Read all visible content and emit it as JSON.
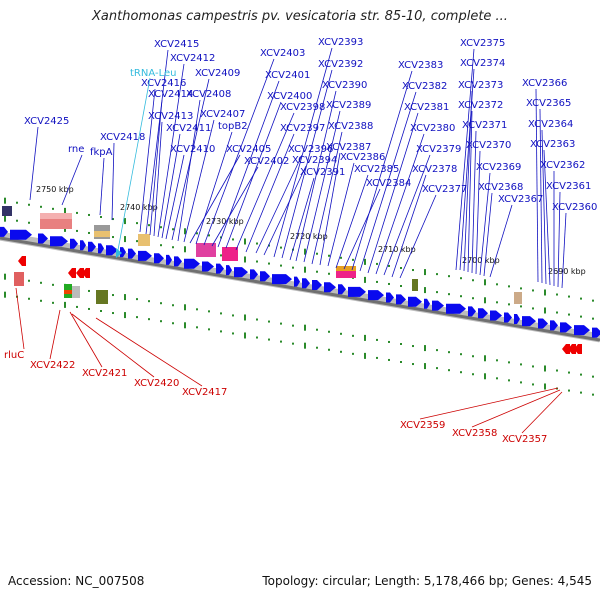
{
  "title": "Xanthomonas campestris pv. vesicatoria str. 85-10, complete ...",
  "footer": {
    "accession": "Accession: NC_007508",
    "summary": "Topology: circular; Length: 5,178,466 bp; Genes: 4,545"
  },
  "colors": {
    "forward_gene": "#0a0aee",
    "reverse_gene": "#ee0000",
    "trna": "#33bbdd",
    "label_blue": "#1010c0",
    "label_red": "#cc0000",
    "backbone": "#8a8a8a",
    "tick": "#2a8a2a"
  },
  "scale_labels": [
    "2750 kbp",
    "2740 kbp",
    "2730 kbp",
    "2720 kbp",
    "2710 kbp",
    "2700 kbp",
    "2690 kbp"
  ],
  "forward_labels": [
    "XCV2425",
    "rne",
    "fkpA",
    "XCV2418",
    "XCV2416",
    "XCV2415",
    "XCV2414",
    "XCV2413",
    "XCV2412",
    "XCV2411",
    "XCV2410",
    "XCV2409",
    "XCV2408",
    "XCV2407",
    "XCV2405",
    "topB2",
    "XCV2403",
    "XCV2402",
    "XCV2401",
    "XCV2400",
    "XCV2398",
    "XCV2397",
    "XCV2396",
    "XCV2394",
    "XCV2393",
    "XCV2392",
    "XCV2391",
    "XCV2390",
    "XCV2389",
    "XCV2388",
    "XCV2387",
    "XCV2386",
    "XCV2385",
    "XCV2384",
    "XCV2383",
    "XCV2382",
    "XCV2381",
    "XCV2380",
    "XCV2379",
    "XCV2378",
    "XCV2377",
    "XCV2375",
    "XCV2374",
    "XCV2373",
    "XCV2372",
    "XCV2371",
    "XCV2370",
    "XCV2369",
    "XCV2368",
    "XCV2367",
    "XCV2366",
    "XCV2365",
    "XCV2364",
    "XCV2363",
    "XCV2362",
    "XCV2361",
    "XCV2360"
  ],
  "trna_label": "tRNA-Leu",
  "reverse_labels": [
    "rluC",
    "XCV2422",
    "XCV2421",
    "XCV2420",
    "XCV2417",
    "XCV2359",
    "XCV2358",
    "XCV2357"
  ]
}
